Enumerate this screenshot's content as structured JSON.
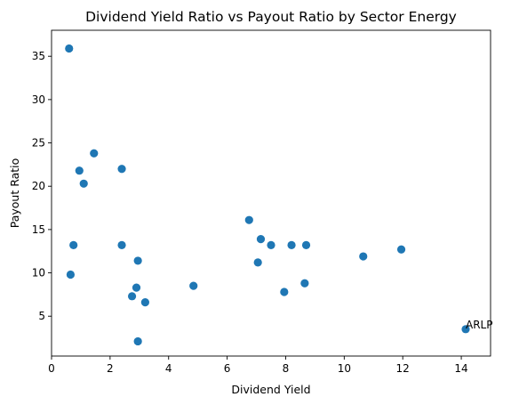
{
  "chart_data": {
    "type": "scatter",
    "title": "Dividend Yield Ratio vs Payout Ratio by Sector Energy",
    "xlabel": "Dividend Yield",
    "ylabel": "Payout Ratio",
    "xlim": [
      0,
      15
    ],
    "ylim": [
      0.4,
      38
    ],
    "xticks": [
      0,
      2,
      4,
      6,
      8,
      10,
      12,
      14
    ],
    "yticks": [
      5,
      10,
      15,
      20,
      25,
      30,
      35
    ],
    "grid": false,
    "marker_color": "#1f77b4",
    "points": [
      {
        "x": 0.6,
        "y": 35.9
      },
      {
        "x": 0.65,
        "y": 9.8
      },
      {
        "x": 0.75,
        "y": 13.2
      },
      {
        "x": 0.95,
        "y": 21.8
      },
      {
        "x": 1.1,
        "y": 20.3
      },
      {
        "x": 1.45,
        "y": 23.8
      },
      {
        "x": 2.4,
        "y": 22.0
      },
      {
        "x": 2.4,
        "y": 13.2
      },
      {
        "x": 2.75,
        "y": 7.3
      },
      {
        "x": 2.9,
        "y": 8.3
      },
      {
        "x": 2.95,
        "y": 11.4
      },
      {
        "x": 2.95,
        "y": 2.1
      },
      {
        "x": 3.2,
        "y": 6.6
      },
      {
        "x": 4.85,
        "y": 8.5
      },
      {
        "x": 6.75,
        "y": 16.1
      },
      {
        "x": 7.05,
        "y": 11.2
      },
      {
        "x": 7.15,
        "y": 13.9
      },
      {
        "x": 7.5,
        "y": 13.2
      },
      {
        "x": 7.95,
        "y": 7.8
      },
      {
        "x": 8.2,
        "y": 13.2
      },
      {
        "x": 8.65,
        "y": 8.8
      },
      {
        "x": 8.7,
        "y": 13.2
      },
      {
        "x": 10.65,
        "y": 11.9
      },
      {
        "x": 11.95,
        "y": 12.7
      },
      {
        "x": 14.15,
        "y": 3.5
      }
    ],
    "annotations": [
      {
        "text": "ARLP",
        "x": 14.15,
        "y": 3.5
      }
    ]
  }
}
